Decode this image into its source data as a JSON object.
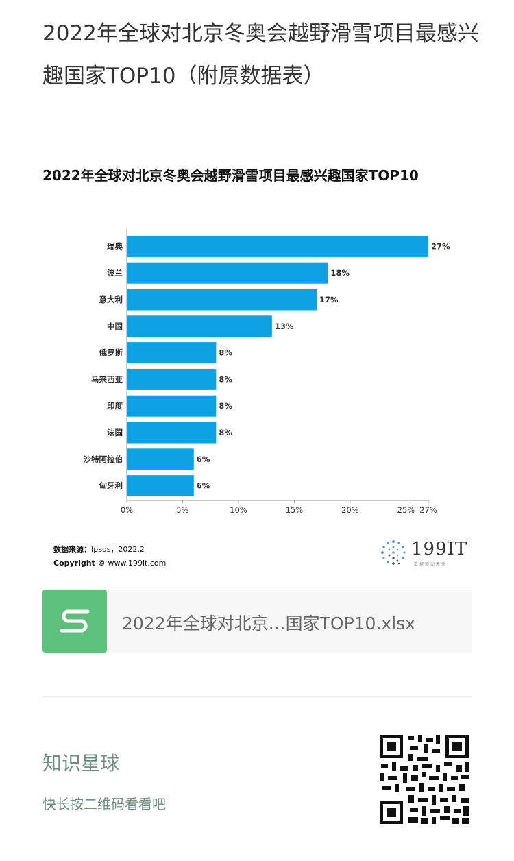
{
  "article": {
    "title": "2022年全球对北京冬奥会越野滑雪项目最感兴趣国家TOP10（附原数据表）"
  },
  "chart": {
    "source_label": "数据来源：",
    "source_value": "Ipsos，2022.2",
    "copyright_label": "Copyright ©",
    "copyright_value": "www.199it.com",
    "logo_text": "199IT",
    "logo_sub": "数据驱动未来"
  },
  "chart_data": {
    "type": "bar",
    "orientation": "horizontal",
    "title": "2022年全球对北京冬奥会越野滑雪项目最感兴趣国家TOP10",
    "categories": [
      "瑞典",
      "波兰",
      "意大利",
      "中国",
      "俄罗斯",
      "马来西亚",
      "印度",
      "法国",
      "沙特阿拉伯",
      "匈牙利"
    ],
    "values": [
      27,
      18,
      17,
      13,
      8,
      8,
      8,
      8,
      6,
      6
    ],
    "data_labels": [
      "27%",
      "18%",
      "17%",
      "13%",
      "8%",
      "8%",
      "8%",
      "8%",
      "6%",
      "6%"
    ],
    "xlim": [
      0,
      27
    ],
    "xticks": [
      0,
      5,
      10,
      15,
      20,
      25,
      27
    ],
    "xtick_labels": [
      "0%",
      "5%",
      "10%",
      "15%",
      "20%",
      "25%",
      "27%"
    ],
    "bar_color": "#0ea1e3",
    "grid": false
  },
  "attachment": {
    "file_name": "2022年全球对北京…国家TOP10.xlsx",
    "icon": "spreadsheet-s-icon",
    "icon_color": "#5fbf7c"
  },
  "planet": {
    "title": "知识星球",
    "subtitle": "快长按二维码看看吧",
    "qr_icon": "qr-code-icon"
  }
}
